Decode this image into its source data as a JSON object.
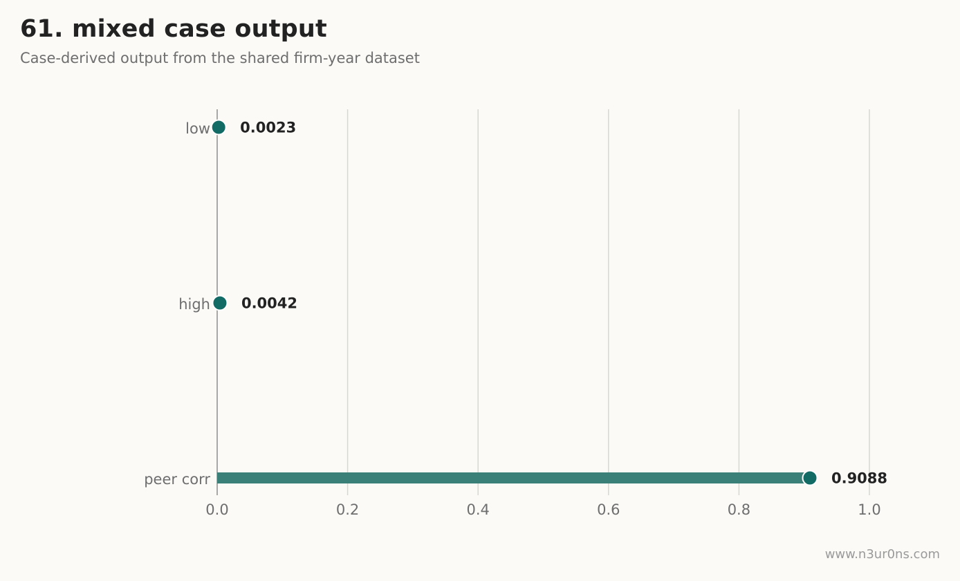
{
  "header": {
    "title": "61. mixed case output",
    "subtitle": "Case-derived output from the shared firm-year dataset"
  },
  "footer": {
    "watermark": "www.n3ur0ns.com"
  },
  "colors": {
    "accent": "#136b66",
    "bar": "#3a8079",
    "grid": "#d6d6d3",
    "axis": "#8c8c8c"
  },
  "chart_data": {
    "type": "bar",
    "orientation": "horizontal",
    "categories": [
      "low",
      "high",
      "peer corr"
    ],
    "values": [
      0.0023,
      0.0042,
      0.9088
    ],
    "value_labels": [
      "0.0023",
      "0.0042",
      "0.9088"
    ],
    "title": "61. mixed case output",
    "subtitle": "Case-derived output from the shared firm-year dataset",
    "xlabel": "",
    "ylabel": "",
    "xlim": [
      0,
      1.0
    ],
    "xticks": [
      0.0,
      0.2,
      0.4,
      0.6,
      0.8,
      1.0
    ],
    "xtick_labels": [
      "0.0",
      "0.2",
      "0.4",
      "0.6",
      "0.8",
      "1.0"
    ],
    "grid": "vertical",
    "legend": "none"
  }
}
